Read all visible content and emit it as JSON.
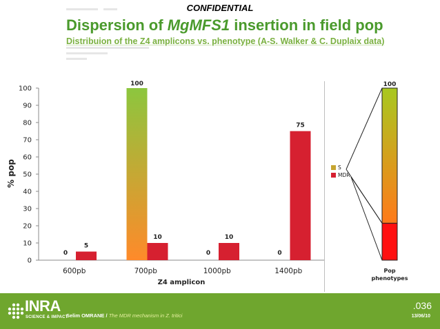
{
  "header": {
    "confidential": "CONFIDENTIAL",
    "title_pre": "Dispersion of ",
    "title_gene": "MgMFS1",
    "title_post": " insertion in field pop",
    "subtitle": "Distribuion of the Z4 amplicons vs. phenotype (A-S. Walker & C. Duplaix data)"
  },
  "colors": {
    "title_green": "#4a9a2c",
    "footer_green": "#6fa62e",
    "mdr_red": "#d62030",
    "s_gradient": [
      "#ff8a2a",
      "#8cc63e"
    ],
    "pop_s_gradient": [
      "#ff7a1a",
      "#a8c820"
    ],
    "pop_mdr": "#ff1010"
  },
  "chart_data": [
    {
      "type": "bar",
      "ylabel": "% pop",
      "xlabel": "Z4 amplicon",
      "ylim": [
        0,
        100
      ],
      "yticks": [
        0,
        10,
        20,
        30,
        40,
        50,
        60,
        70,
        80,
        90,
        100
      ],
      "categories": [
        "600pb",
        "700pb",
        "1000pb",
        "1400pb"
      ],
      "series": [
        {
          "name": "S",
          "values": [
            0,
            100,
            0,
            0
          ]
        },
        {
          "name": "MDR",
          "values": [
            5,
            10,
            10,
            75
          ]
        }
      ],
      "legend": {
        "entries": [
          "S",
          "MDR"
        ],
        "placement": "right"
      }
    },
    {
      "type": "bar",
      "stacked": true,
      "categories": [
        "Pop phenotypes"
      ],
      "xlabel_lines": [
        "Pop",
        "phenotypes"
      ],
      "total_label": "100",
      "series": [
        {
          "name": "MDR",
          "values": [
            21.5
          ]
        },
        {
          "name": "S",
          "values": [
            78.5
          ]
        }
      ]
    }
  ],
  "footer": {
    "author": "Selim OMRANE",
    "separator": " / ",
    "topic": "The MDR mechanism in Z. tritici",
    "slide_number": ".036",
    "date": "13/06/10",
    "logo_text": "INRA",
    "logo_sub": "SCIENCE & IMPACT"
  }
}
